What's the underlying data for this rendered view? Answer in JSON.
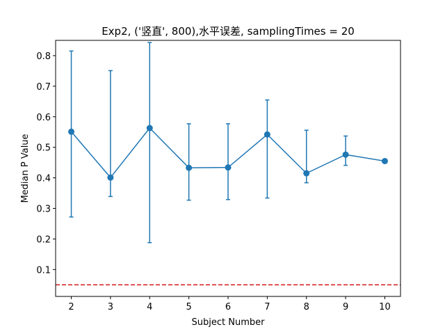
{
  "chart_data": {
    "type": "line",
    "title": "Exp2, ('竖直', 800),水平误差, samplingTimes = 20",
    "xlabel": "Subject Number",
    "ylabel": "Median P Value",
    "xlim": [
      1.6,
      10.4
    ],
    "ylim": [
      0.012,
      0.85
    ],
    "xticks": [
      2,
      3,
      4,
      5,
      6,
      7,
      8,
      9,
      10
    ],
    "yticks": [
      0.1,
      0.2,
      0.3,
      0.4,
      0.5,
      0.6,
      0.7,
      0.8
    ],
    "series": [
      {
        "x": [
          2,
          3,
          4,
          5,
          6,
          7,
          8,
          9,
          10
        ],
        "values": [
          0.551,
          0.401,
          0.563,
          0.433,
          0.434,
          0.542,
          0.415,
          0.476,
          0.455
        ],
        "err_low": [
          0.272,
          0.339,
          0.188,
          0.327,
          0.329,
          0.334,
          0.384,
          0.441,
          0.455
        ],
        "err_high": [
          0.815,
          0.751,
          0.843,
          0.577,
          0.577,
          0.655,
          0.556,
          0.537,
          0.455
        ],
        "color": "#1f77b4"
      }
    ],
    "reference_line": {
      "y": 0.05,
      "color": "#d62728",
      "style": "dashed"
    },
    "grid": false,
    "legend": "none"
  }
}
